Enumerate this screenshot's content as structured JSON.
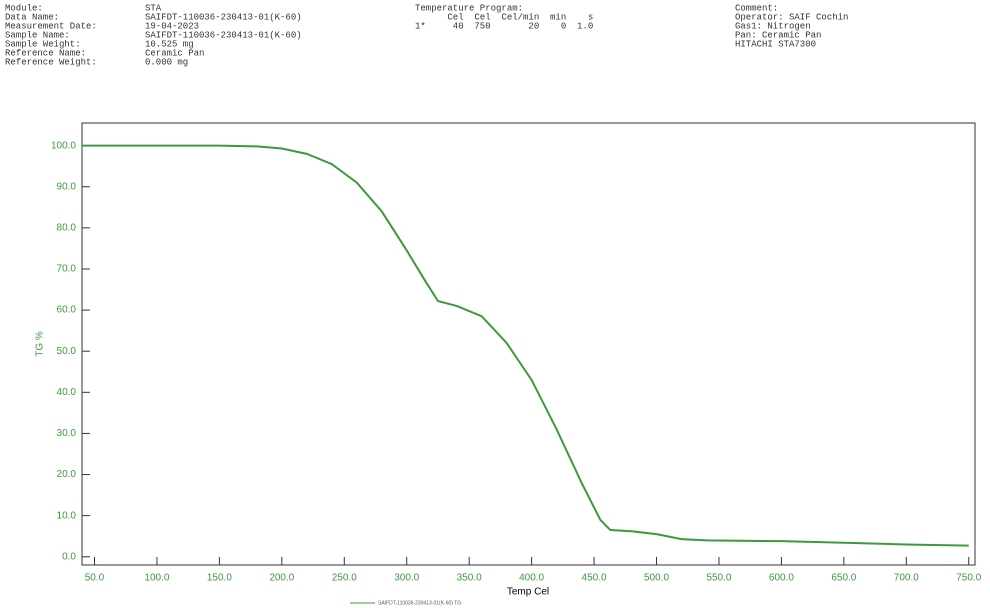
{
  "chart_data": {
    "type": "line",
    "info": [
      [
        [
          "Module:",
          "STA"
        ],
        [
          "Data Name:",
          "SAIFDT-110036-230413-01(K-60)"
        ],
        [
          "Measurement Date:",
          "19-04-2023"
        ],
        [
          "Sample Name:",
          "SAIFDT-110036-230413-01(K-60)"
        ],
        [
          "Sample Weight:",
          "10.525 mg"
        ],
        [
          "Reference Name:",
          "Ceramic Pan"
        ],
        [
          "Reference Weight:",
          "0.000 mg"
        ]
      ],
      [
        "Temperature Program:",
        "      Cel  Cel  Cel/min  min    s",
        "1*     40  750       20    0  1.0"
      ],
      [
        "Comment:",
        "Operator: SAIF Cochin",
        "Gas1: Nitrogen",
        "Pan: Ceramic Pan",
        "HITACHI STA7300"
      ]
    ],
    "x_label": "Temp Cel",
    "y_label": "TG %",
    "x": [
      40,
      100,
      150,
      180,
      200,
      220,
      240,
      260,
      280,
      300,
      315,
      325,
      340,
      360,
      380,
      400,
      420,
      440,
      455,
      463,
      480,
      500,
      520,
      540,
      600,
      650,
      700,
      750
    ],
    "series": [
      {
        "name": "SAIFDT-110036-230413-01(K-60) TG",
        "color": "#3c9a3c",
        "values": [
          100,
          100,
          100,
          99.8,
          99.3,
          98,
          95.5,
          91,
          84,
          74.5,
          67,
          62.2,
          61,
          58.5,
          52,
          43,
          31,
          18,
          9,
          6.5,
          6.2,
          5.5,
          4.3,
          4.0,
          3.8,
          3.4,
          3.0,
          2.7
        ]
      }
    ],
    "xlim": [
      40,
      755
    ],
    "ylim": [
      -2,
      105.5
    ],
    "xticks": [
      {
        "value": 50,
        "label": "50.0"
      },
      {
        "value": 100,
        "label": "100.0"
      },
      {
        "value": 150,
        "label": "150.0"
      },
      {
        "value": 200,
        "label": "200.0"
      },
      {
        "value": 250,
        "label": "250.0"
      },
      {
        "value": 300,
        "label": "300.0"
      },
      {
        "value": 350,
        "label": "350.0"
      },
      {
        "value": 400,
        "label": "400.0"
      },
      {
        "value": 450,
        "label": "450.0"
      },
      {
        "value": 500,
        "label": "500.0"
      },
      {
        "value": 550,
        "label": "550.0"
      },
      {
        "value": 600,
        "label": "600.0"
      },
      {
        "value": 650,
        "label": "650.0"
      },
      {
        "value": 700,
        "label": "700.0"
      },
      {
        "value": 750,
        "label": "750.0"
      }
    ],
    "yticks": [
      {
        "value": 0,
        "label": "0.0"
      },
      {
        "value": 10,
        "label": "10.0"
      },
      {
        "value": 20,
        "label": "20.0"
      },
      {
        "value": 30,
        "label": "30.0"
      },
      {
        "value": 40,
        "label": "40.0"
      },
      {
        "value": 50,
        "label": "50.0"
      },
      {
        "value": 60,
        "label": "60.0"
      },
      {
        "value": 70,
        "label": "70.0"
      },
      {
        "value": 80,
        "label": "80.0"
      },
      {
        "value": 90,
        "label": "90.0"
      },
      {
        "value": 100,
        "label": "100.0"
      }
    ],
    "axis_color": "#3c9a3c"
  }
}
